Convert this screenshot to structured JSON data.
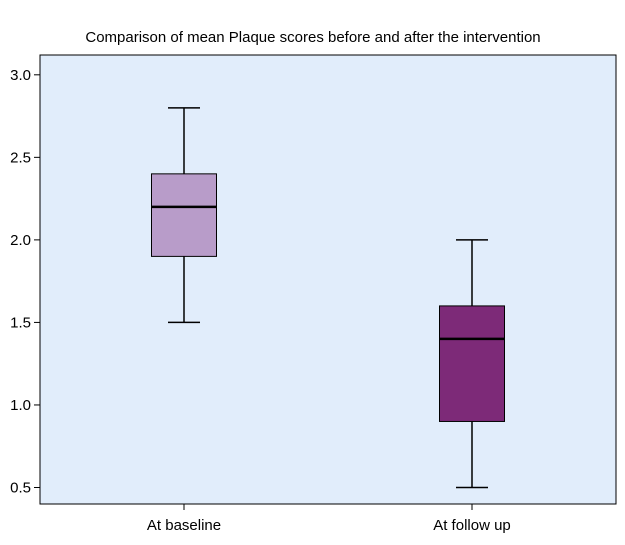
{
  "chart_data": {
    "type": "boxplot",
    "title": "Comparison of mean Plaque scores before and after the intervention",
    "xlabel": "",
    "ylabel": "",
    "ylim": [
      0.4,
      3.12
    ],
    "yticks": [
      0.5,
      1.0,
      1.5,
      2.0,
      2.5,
      3.0
    ],
    "ytick_labels": [
      "0.5",
      "1.0",
      "1.5",
      "2.0",
      "2.5",
      "3.0"
    ],
    "grid": false,
    "plot_background": "#e1edfb",
    "categories": [
      "At baseline",
      "At follow up"
    ],
    "boxes": [
      {
        "category": "At baseline",
        "whisker_low": 1.5,
        "q1": 1.9,
        "median": 2.2,
        "q3": 2.4,
        "whisker_high": 2.8,
        "color": "#b89cc9"
      },
      {
        "category": "At follow up",
        "whisker_low": 0.5,
        "q1": 0.9,
        "median": 1.4,
        "q3": 1.6,
        "whisker_high": 2.0,
        "color": "#7d2a78"
      }
    ]
  }
}
